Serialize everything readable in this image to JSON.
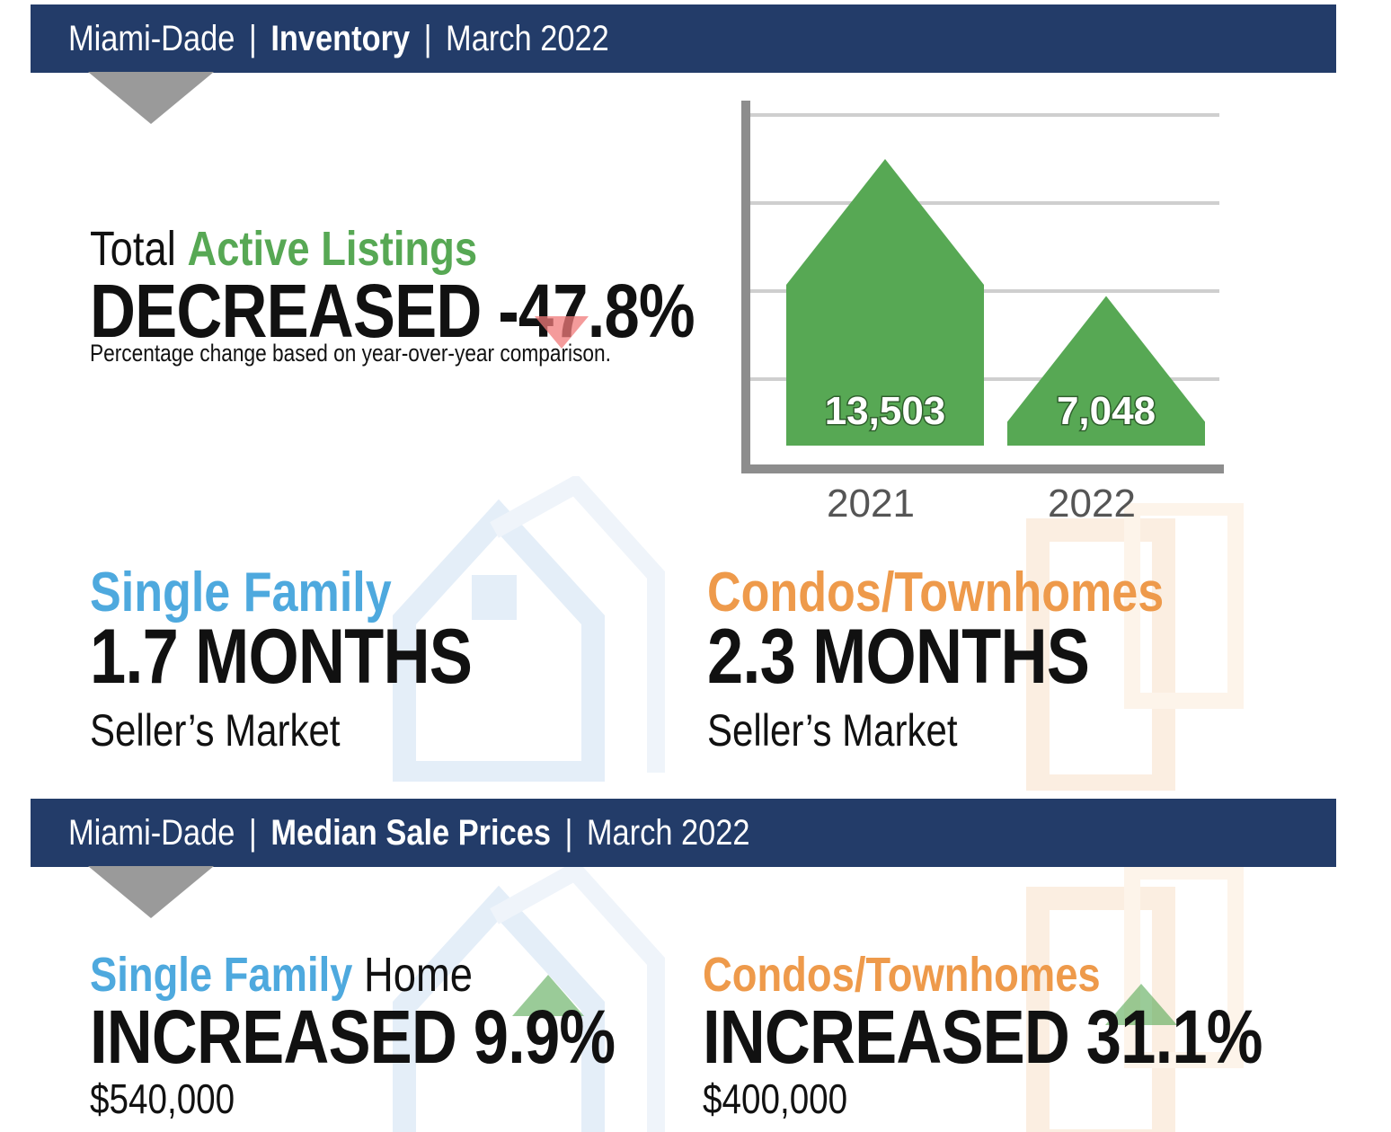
{
  "inventory_banner": {
    "region": "Miami-Dade",
    "topic": "Inventory",
    "period": "March 2022"
  },
  "active_listings": {
    "prefix": "Total",
    "highlight": "Active Listings",
    "headline": "DECREASED -47.8%",
    "note": "Percentage change based on year-over-year comparison."
  },
  "chart_data": {
    "type": "bar",
    "categories": [
      "2021",
      "2022"
    ],
    "values": [
      13503,
      7048
    ],
    "value_labels": [
      "13,503",
      "7,048"
    ],
    "ylim": [
      0,
      16000
    ],
    "grid": true,
    "title": "",
    "xlabel": "",
    "ylabel": "",
    "bar_color": "#57a854"
  },
  "months_supply": {
    "single_family": {
      "title": "Single Family",
      "value": "1.7 MONTHS",
      "market": "Seller’s Market"
    },
    "condos": {
      "title": "Condos/Townhomes",
      "value": "2.3 MONTHS",
      "market": "Seller’s Market"
    }
  },
  "prices_banner": {
    "region": "Miami-Dade",
    "topic": "Median Sale Prices",
    "period": "March 2022"
  },
  "median_prices": {
    "single_family": {
      "title": "Single Family",
      "suffix": "Home",
      "headline": "INCREASED 9.9%",
      "price": "$540,000"
    },
    "condos": {
      "title": "Condos/Townhomes",
      "headline": "INCREASED 31.1%",
      "price": "$400,000"
    }
  },
  "colors": {
    "banner": "#233c69",
    "single_family": "#4ea9de",
    "condos": "#ee9a4b",
    "green": "#57a854"
  }
}
